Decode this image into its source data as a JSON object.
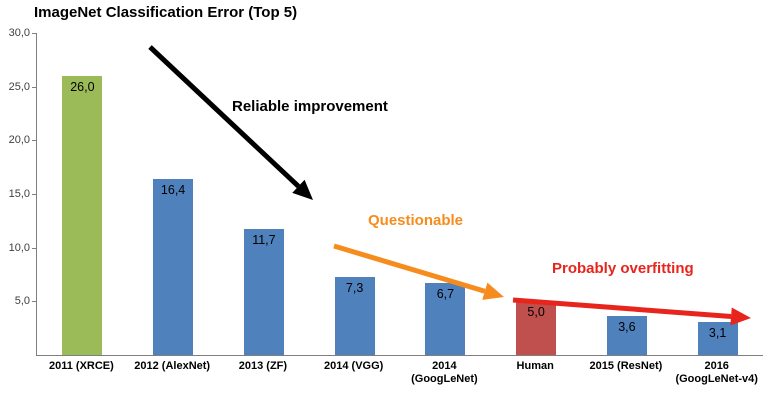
{
  "chart_data": {
    "type": "bar",
    "title": "ImageNet Classification Error (Top 5)",
    "categories": [
      "2011 (XRCE)",
      "2012 (AlexNet)",
      "2013 (ZF)",
      "2014 (VGG)",
      "2014 (GoogLeNet)",
      "Human",
      "2015 (ResNet)",
      "2016 (GoogLeNet-v4)"
    ],
    "values": [
      26.0,
      16.4,
      11.7,
      7.3,
      6.7,
      5.0,
      3.6,
      3.1
    ],
    "value_labels": [
      "26,0",
      "16,4",
      "11,7",
      "7,3",
      "6,7",
      "5,0",
      "3,6",
      "3,1"
    ],
    "bar_colors": [
      "#9bbb59",
      "#4f81bd",
      "#4f81bd",
      "#4f81bd",
      "#4f81bd",
      "#c0504d",
      "#4f81bd",
      "#4f81bd"
    ],
    "xlabel": "",
    "ylabel": "",
    "ylim": [
      0,
      30
    ],
    "ytick_labels": [
      "30,0",
      "25,0",
      "20,0",
      "15,0",
      "10,0",
      "5,0"
    ],
    "ytick_values": [
      30,
      25,
      20,
      15,
      10,
      5
    ],
    "grid": false,
    "legend": "none",
    "annotations": [
      {
        "text": "Reliable improvement",
        "color": "#000000"
      },
      {
        "text": "Questionable",
        "color": "#f78c1e"
      },
      {
        "text": "Probably overfitting",
        "color": "#e8251d"
      }
    ]
  }
}
